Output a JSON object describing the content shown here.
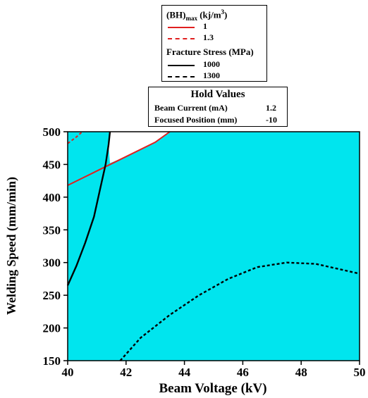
{
  "chart_data": {
    "type": "contour",
    "xlabel": "Beam Voltage (kV)",
    "ylabel": "Welding Speed (mm/min)",
    "xlim": [
      40,
      50
    ],
    "ylim": [
      150,
      500
    ],
    "xticks": [
      "40",
      "42",
      "44",
      "46",
      "48",
      "50"
    ],
    "yticks": [
      "150",
      "200",
      "250",
      "300",
      "350",
      "400",
      "450",
      "500"
    ],
    "feasible_region_color": "#00e5ee",
    "unshaded_region_color": "#ffffff",
    "legend": {
      "group1_title": "(BH)max (kj/m3)",
      "group1_title_parts": {
        "base": "(BH)",
        "sub": "max",
        "unit": " (kj/m",
        "sup": "3",
        "close": ")"
      },
      "group2_title": "Fracture Stress (MPa)"
    },
    "hold_values": {
      "title": "Hold Values",
      "rows": [
        {
          "label": "Beam Current (mA)",
          "value": "1.2"
        },
        {
          "label": "Focused Position (mm)",
          "value": "-10"
        }
      ]
    },
    "series": [
      {
        "name": "1",
        "group": "(BH)max",
        "color": "#e02020",
        "style": "solid",
        "points": [
          [
            40,
            418
          ],
          [
            41,
            440
          ],
          [
            42,
            462
          ],
          [
            43,
            484
          ],
          [
            43.5,
            500
          ]
        ]
      },
      {
        "name": "1.3",
        "group": "(BH)max",
        "color": "#e02020",
        "style": "dashed",
        "points": [
          [
            40,
            482
          ],
          [
            40.3,
            492
          ],
          [
            40.5,
            500
          ]
        ]
      },
      {
        "name": "1000",
        "group": "Fracture Stress",
        "color": "#000000",
        "style": "solid",
        "points": [
          [
            40,
            265
          ],
          [
            40.3,
            295
          ],
          [
            40.6,
            330
          ],
          [
            40.9,
            370
          ],
          [
            41.1,
            410
          ],
          [
            41.3,
            450
          ],
          [
            41.4,
            480
          ],
          [
            41.45,
            500
          ]
        ]
      },
      {
        "name": "1300",
        "group": "Fracture Stress",
        "color": "#000000",
        "style": "dashed",
        "points": [
          [
            41.8,
            150
          ],
          [
            42.5,
            185
          ],
          [
            43.5,
            220
          ],
          [
            44.5,
            250
          ],
          [
            45.5,
            275
          ],
          [
            46.5,
            293
          ],
          [
            47.5,
            300
          ],
          [
            48.5,
            298
          ],
          [
            49.3,
            290
          ],
          [
            50,
            283
          ]
        ]
      }
    ]
  }
}
